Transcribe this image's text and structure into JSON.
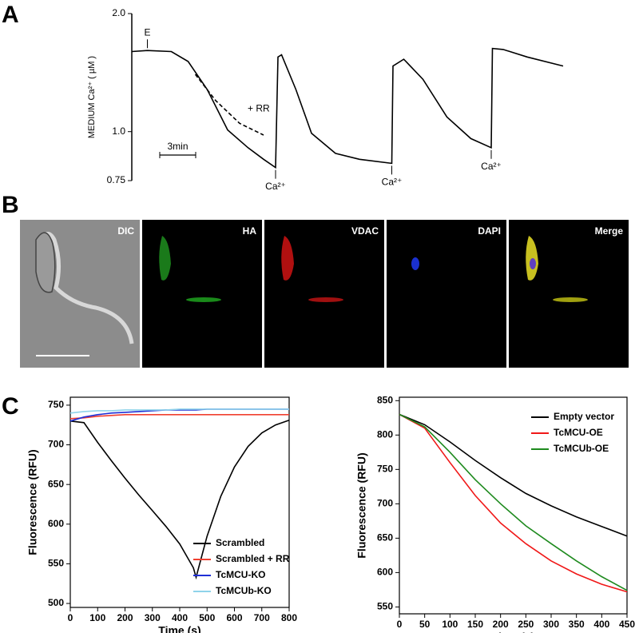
{
  "panel_labels": [
    "A",
    "B",
    "C"
  ],
  "micrographs": [
    "DIC",
    "HA",
    "VDAC",
    "DAPI",
    "Merge"
  ],
  "chart_data": [
    {
      "type": "line",
      "y_label": "MEDIUM Ca²⁺ ( µM )",
      "log": true,
      "ylim": [
        0.75,
        2.0
      ],
      "yticks": [
        0.75,
        {
          "value": 1.0,
          "label": "1.0"
        },
        {
          "value": 2.0,
          "label": "2.0"
        }
      ],
      "xlim": [
        0,
        36
      ],
      "scale_bar": {
        "value": 3,
        "label": "3min"
      },
      "series": [
        {
          "color": "#000000",
          "x": [
            0,
            1.3,
            3.3,
            4.7,
            6.3,
            8,
            9.7,
            11,
            12,
            12.2,
            12.5,
            13.7,
            15,
            17,
            19,
            21.7,
            21.8,
            22.7,
            24.3,
            26.3,
            28.3,
            30,
            30.1,
            31,
            33,
            36
          ],
          "values": [
            1.6,
            1.61,
            1.6,
            1.51,
            1.28,
            1.01,
            0.91,
            0.85,
            0.81,
            1.55,
            1.57,
            1.28,
            0.99,
            0.88,
            0.85,
            0.83,
            1.47,
            1.53,
            1.36,
            1.09,
            0.96,
            0.91,
            1.63,
            1.62,
            1.55,
            1.47
          ]
        },
        {
          "name": "+ RR",
          "color": "#000000",
          "dash": true,
          "x": [
            5.3,
            7,
            9,
            11
          ],
          "values": [
            1.4,
            1.2,
            1.05,
            0.98
          ]
        }
      ],
      "annotations": [
        {
          "text": "E",
          "x": 1.3,
          "y": 1.61,
          "side": "above"
        },
        {
          "text": "Ca²⁺",
          "x": 12,
          "y": 0.81,
          "side": "below"
        },
        {
          "text": "Ca²⁺",
          "x": 21.7,
          "y": 0.83,
          "side": "below"
        },
        {
          "text": "Ca²⁺",
          "x": 30,
          "y": 0.91,
          "side": "below"
        }
      ]
    },
    {
      "type": "line",
      "x_label": "Time (s)",
      "y_label": "Fluorescence (RFU)",
      "xlim": [
        0,
        800
      ],
      "xticks": [
        0,
        100,
        200,
        300,
        400,
        500,
        600,
        700,
        800
      ],
      "ylim": [
        495,
        760
      ],
      "yticks": [
        500,
        550,
        600,
        650,
        700,
        750
      ],
      "legend": "lower right",
      "x": [
        0,
        50,
        100,
        150,
        200,
        250,
        300,
        350,
        400,
        450,
        460,
        500,
        550,
        600,
        650,
        700,
        750,
        800
      ],
      "series": [
        {
          "name": "Scrambled",
          "color": "#000000",
          "values": [
            730,
            728,
            703,
            680,
            658,
            637,
            617,
            597,
            575,
            545,
            533,
            585,
            635,
            672,
            698,
            715,
            725,
            731
          ]
        },
        {
          "name": "Scrambled + RR",
          "color": "#f04030",
          "values": [
            733,
            734,
            736,
            737,
            738,
            738,
            738,
            738,
            738,
            738,
            738,
            738,
            738,
            738,
            738,
            738,
            738,
            738
          ]
        },
        {
          "name": "TcMCU-KO",
          "color": "#1f2fd6",
          "values": [
            730,
            735,
            738,
            740,
            741,
            742,
            743,
            744,
            744,
            744,
            744,
            745,
            745,
            745,
            745,
            745,
            745,
            745
          ]
        },
        {
          "name": "TcMCUb-KO",
          "color": "#8fd3ea",
          "values": [
            740,
            742,
            743,
            743,
            744,
            744,
            744,
            744,
            745,
            745,
            745,
            745,
            745,
            745,
            745,
            745,
            745,
            745
          ]
        }
      ]
    },
    {
      "type": "line",
      "x_label": "Time (s)",
      "y_label": "Fluorescence (RFU)",
      "xlim": [
        0,
        450
      ],
      "xticks": [
        0,
        50,
        100,
        150,
        200,
        250,
        300,
        350,
        400,
        450
      ],
      "ylim": [
        540,
        855
      ],
      "yticks": [
        550,
        600,
        650,
        700,
        750,
        800,
        850
      ],
      "legend": "upper right",
      "x": [
        0,
        50,
        100,
        150,
        200,
        250,
        300,
        350,
        400,
        450
      ],
      "series": [
        {
          "name": "Empty vector",
          "color": "#000000",
          "values": [
            830,
            815,
            790,
            763,
            738,
            715,
            697,
            681,
            667,
            653
          ]
        },
        {
          "name": "TcMCU-OE",
          "color": "#f01818",
          "values": [
            830,
            810,
            760,
            712,
            672,
            642,
            617,
            598,
            583,
            572
          ]
        },
        {
          "name": "TcMCUb-OE",
          "color": "#1e8a1e",
          "values": [
            830,
            812,
            775,
            735,
            700,
            668,
            642,
            617,
            594,
            574
          ]
        }
      ]
    }
  ]
}
